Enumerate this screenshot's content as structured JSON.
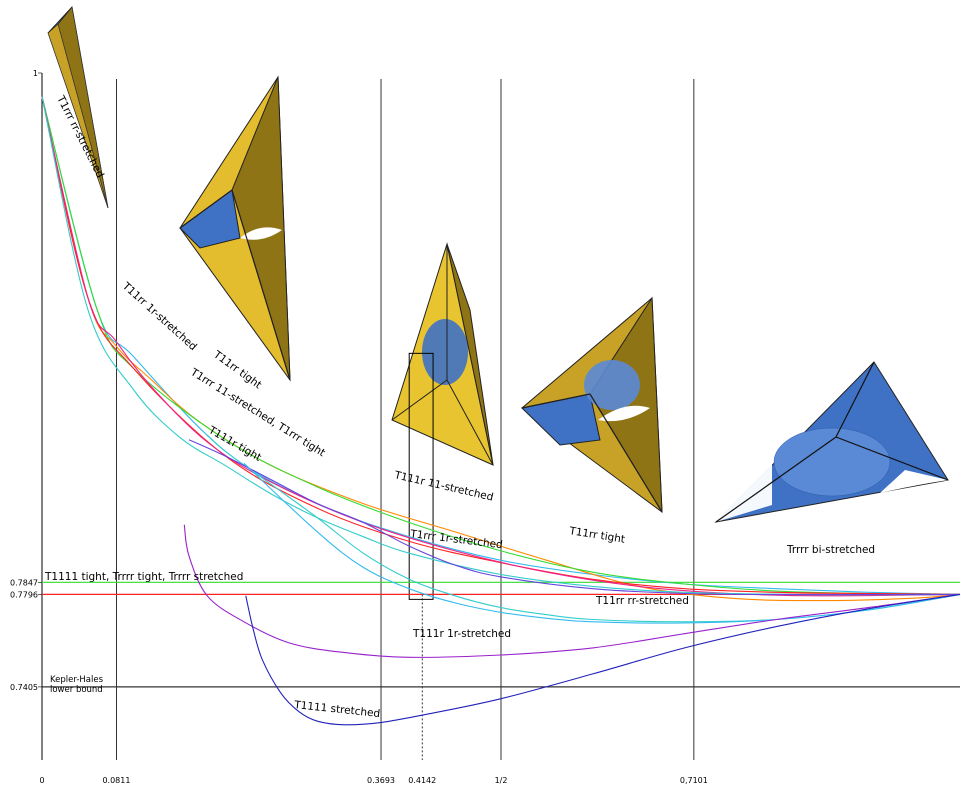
{
  "chart_data": {
    "type": "line",
    "title": "",
    "xlabel": "",
    "ylabel": "",
    "xlim": [
      0,
      1
    ],
    "ylim": [
      0.7,
      1
    ],
    "grid": false,
    "x_ticks": [
      {
        "value": 0,
        "label": "0"
      },
      {
        "value": 0.0811,
        "label": "0.0811"
      },
      {
        "value": 0.3693,
        "label": "0.3693"
      },
      {
        "value": 0.4142,
        "label": "0.4142"
      },
      {
        "value": 0.5,
        "label": "1/2"
      },
      {
        "value": 0.7101,
        "label": "0,7101"
      }
    ],
    "y_ticks": [
      {
        "value": 1,
        "label": "1"
      },
      {
        "value": 0.7847,
        "label": "0.7847"
      },
      {
        "value": 0.7796,
        "label": "0.7796"
      },
      {
        "value": 0.7405,
        "label": "0.7405"
      }
    ],
    "reference_lines": [
      {
        "value": 0.7847,
        "color": "#33dd33"
      },
      {
        "value": 0.7796,
        "color": "#ff2222"
      },
      {
        "value": 0.7405,
        "color": "#333333",
        "label": [
          "Kepler-Hales",
          "lower bound"
        ]
      }
    ],
    "vertical_lines": [
      0.0811,
      0.3693,
      0.5,
      0.7101
    ],
    "dotted_line": 0.4142,
    "zoom_box": {
      "x": [
        0.4,
        0.426
      ],
      "y": [
        0.7775,
        0.8815
      ]
    },
    "series": [
      {
        "name": "T1rrr rr-stretched",
        "color": "#33bbee",
        "points": [
          [
            0,
            0.99
          ],
          [
            0.06,
            0.9
          ],
          [
            0.1,
            0.88
          ],
          [
            0.2,
            0.84
          ],
          [
            0.3,
            0.818
          ],
          [
            0.4,
            0.804
          ],
          [
            0.5,
            0.794
          ],
          [
            0.6,
            0.788
          ],
          [
            0.7,
            0.784
          ],
          [
            0.8,
            0.782
          ],
          [
            0.9,
            0.7805
          ],
          [
            1,
            0.7796
          ]
        ]
      },
      {
        "name": "T11rr 1r-stretched",
        "color": "#ff8800",
        "points": [
          [
            0,
            0.99
          ],
          [
            0.05,
            0.905
          ],
          [
            0.08,
            0.885
          ],
          [
            0.12,
            0.87
          ],
          [
            0.17,
            0.853
          ],
          [
            0.25,
            0.834
          ],
          [
            0.35,
            0.818
          ],
          [
            0.45,
            0.806
          ],
          [
            0.55,
            0.794
          ],
          [
            0.65,
            0.783
          ],
          [
            0.75,
            0.778
          ],
          [
            0.85,
            0.777
          ],
          [
            0.95,
            0.778
          ],
          [
            1,
            0.7796
          ]
        ]
      },
      {
        "name": "T11rr tight",
        "color": "#33dd33",
        "points": [
          [
            0,
            0.99
          ],
          [
            0.06,
            0.9
          ],
          [
            0.1,
            0.875
          ],
          [
            0.2,
            0.845
          ],
          [
            0.3,
            0.825
          ],
          [
            0.4,
            0.81
          ],
          [
            0.5,
            0.798
          ],
          [
            0.6,
            0.789
          ],
          [
            0.7,
            0.784
          ],
          [
            0.8,
            0.781
          ],
          [
            0.9,
            0.78
          ],
          [
            1,
            0.7796
          ]
        ]
      },
      {
        "name": "T1rrr 11-stretched",
        "color": "#ff2222",
        "points": [
          [
            0,
            0.99
          ],
          [
            0.05,
            0.905
          ],
          [
            0.1,
            0.875
          ],
          [
            0.2,
            0.838
          ],
          [
            0.3,
            0.816
          ],
          [
            0.4,
            0.802
          ],
          [
            0.5,
            0.793
          ],
          [
            0.6,
            0.786
          ],
          [
            0.7,
            0.782
          ],
          [
            0.8,
            0.7805
          ],
          [
            0.9,
            0.78
          ],
          [
            1,
            0.7796
          ]
        ]
      },
      {
        "name": "T1rrr tight",
        "color": "#ee2288",
        "points": [
          [
            0,
            0.99
          ],
          [
            0.05,
            0.905
          ],
          [
            0.08,
            0.887
          ],
          [
            0.12,
            0.867
          ],
          [
            0.18,
            0.844
          ],
          [
            0.25,
            0.827
          ],
          [
            0.35,
            0.81
          ],
          [
            0.45,
            0.798
          ],
          [
            0.55,
            0.789
          ],
          [
            0.65,
            0.783
          ],
          [
            0.75,
            0.78
          ],
          [
            0.85,
            0.779
          ],
          [
            1,
            0.7796
          ]
        ]
      },
      {
        "name": "T111r tight",
        "color": "#33cccc",
        "points": [
          [
            0,
            0.99
          ],
          [
            0.05,
            0.9
          ],
          [
            0.1,
            0.866
          ],
          [
            0.15,
            0.846
          ],
          [
            0.2,
            0.834
          ],
          [
            0.25,
            0.822
          ],
          [
            0.3,
            0.812
          ],
          [
            0.35,
            0.804
          ],
          [
            0.4,
            0.797
          ],
          [
            0.5,
            0.788
          ],
          [
            0.6,
            0.783
          ],
          [
            0.7,
            0.7805
          ],
          [
            0.85,
            0.7795
          ],
          [
            1,
            0.7796
          ]
        ]
      },
      {
        "name": "T111r 11-stretched",
        "color": "#33cccc",
        "points": [
          [
            0.18,
            0.847
          ],
          [
            0.2,
            0.84
          ],
          [
            0.25,
            0.826
          ],
          [
            0.3,
            0.812
          ],
          [
            0.35,
            0.797
          ],
          [
            0.4,
            0.786
          ],
          [
            0.45,
            0.779
          ],
          [
            0.5,
            0.774
          ],
          [
            0.55,
            0.771
          ],
          [
            0.6,
            0.769
          ],
          [
            0.7,
            0.768
          ],
          [
            0.8,
            0.769
          ],
          [
            0.9,
            0.773
          ],
          [
            1,
            0.7796
          ]
        ]
      },
      {
        "name": "T1rrr 1r-stretched",
        "color": "#6644dd",
        "points": [
          [
            0.16,
            0.845
          ],
          [
            0.2,
            0.838
          ],
          [
            0.25,
            0.828
          ],
          [
            0.3,
            0.818
          ],
          [
            0.35,
            0.81
          ],
          [
            0.4,
            0.8
          ],
          [
            0.45,
            0.792
          ],
          [
            0.5,
            0.787
          ],
          [
            0.6,
            0.782
          ],
          [
            0.7,
            0.78
          ],
          [
            0.8,
            0.7795
          ],
          [
            0.9,
            0.7795
          ],
          [
            1,
            0.7796
          ]
        ]
      },
      {
        "name": "T11rr rr-stretched",
        "color": "#33bbee",
        "points": [
          [
            0.22,
            0.835
          ],
          [
            0.3,
            0.806
          ],
          [
            0.35,
            0.791
          ],
          [
            0.4,
            0.782
          ],
          [
            0.45,
            0.776
          ],
          [
            0.5,
            0.772
          ],
          [
            0.55,
            0.7695
          ],
          [
            0.6,
            0.768
          ],
          [
            0.7,
            0.7675
          ],
          [
            0.8,
            0.769
          ],
          [
            0.9,
            0.773
          ],
          [
            1,
            0.7796
          ]
        ]
      },
      {
        "name": "T111r 1r-stretched",
        "color": "#9922cc",
        "points": [
          [
            0.155,
            0.809
          ],
          [
            0.16,
            0.796
          ],
          [
            0.18,
            0.779
          ],
          [
            0.22,
            0.768
          ],
          [
            0.27,
            0.759
          ],
          [
            0.33,
            0.755
          ],
          [
            0.4,
            0.753
          ],
          [
            0.5,
            0.754
          ],
          [
            0.6,
            0.757
          ],
          [
            0.7,
            0.763
          ],
          [
            0.8,
            0.769
          ],
          [
            0.9,
            0.774
          ],
          [
            1,
            0.7796
          ]
        ]
      },
      {
        "name": "T1111 stretched",
        "color": "#2222bb",
        "points": [
          [
            0.222,
            0.779
          ],
          [
            0.23,
            0.765
          ],
          [
            0.24,
            0.752
          ],
          [
            0.26,
            0.738
          ],
          [
            0.28,
            0.73
          ],
          [
            0.3,
            0.726
          ],
          [
            0.33,
            0.7245
          ],
          [
            0.37,
            0.7255
          ],
          [
            0.42,
            0.729
          ],
          [
            0.5,
            0.7355
          ],
          [
            0.6,
            0.746
          ],
          [
            0.7,
            0.757
          ],
          [
            0.8,
            0.766
          ],
          [
            0.9,
            0.7735
          ],
          [
            1,
            0.7796
          ]
        ]
      }
    ],
    "annotations": [
      {
        "text": "T1rrr rr-stretched"
      },
      {
        "text": "T11rr 1r-stretched"
      },
      {
        "text": "T11rr tight"
      },
      {
        "text": "T1rrr 11-stretched, T1rrr tight"
      },
      {
        "text": "T111r tight"
      },
      {
        "text": "T111r 11-stretched"
      },
      {
        "text": "T1rrr 1r-stretched"
      },
      {
        "text": "T11rr tight"
      },
      {
        "text": "Trrrr bi-stretched"
      },
      {
        "text": "T1111 tight, Trrrr tight, Trrrr stretched"
      },
      {
        "text": "T11rr rr-stretched"
      },
      {
        "text": "T111r 1r-stretched"
      },
      {
        "text": "T1111 stretched"
      }
    ]
  },
  "colors": {
    "gold": "#c8a226",
    "gold_dark": "#8f7416",
    "blue": "#3f72c4",
    "blue_light": "#5a8ad6"
  }
}
